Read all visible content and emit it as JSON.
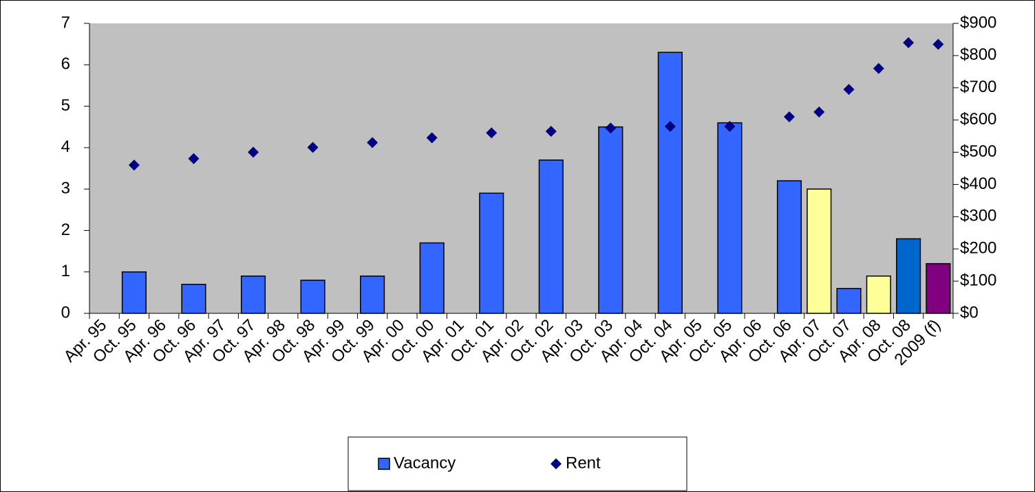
{
  "chart_data": {
    "type": "bar",
    "categories": [
      "Apr. 95",
      "Oct. 95",
      "Apr. 96",
      "Oct. 96",
      "Apr. 97",
      "Oct. 97",
      "Apr. 98",
      "Oct. 98",
      "Apr. 99",
      "Oct. 99",
      "Apr. 00",
      "Oct. 00",
      "Apr. 01",
      "Oct. 01",
      "Apr. 02",
      "Oct. 02",
      "Apr. 03",
      "Oct. 03",
      "Apr. 04",
      "Oct. 04",
      "Apr. 05",
      "Oct. 05",
      "Apr. 06",
      "Oct. 06",
      "Apr. 07",
      "Oct. 07",
      "Apr. 08",
      "Oct. 08",
      "2009 (f)"
    ],
    "series": [
      {
        "name": "Vacancy",
        "type": "bar",
        "color": "#3366ff",
        "colors": [
          null,
          "#3366ff",
          null,
          "#3366ff",
          null,
          "#3366ff",
          null,
          "#3366ff",
          null,
          "#3366ff",
          null,
          "#3366ff",
          null,
          "#3366ff",
          null,
          "#3366ff",
          null,
          "#3366ff",
          null,
          "#3366ff",
          null,
          "#3366ff",
          null,
          "#3366ff",
          "#ffff99",
          "#3366ff",
          "#ffff99",
          "#0066cc",
          "#800080"
        ],
        "values": [
          null,
          1.0,
          null,
          0.7,
          null,
          0.9,
          null,
          0.8,
          null,
          0.9,
          null,
          1.7,
          null,
          2.9,
          null,
          3.7,
          null,
          4.5,
          null,
          6.3,
          null,
          4.6,
          null,
          3.2,
          3.0,
          0.6,
          0.9,
          1.8,
          1.2
        ]
      },
      {
        "name": "Rent",
        "type": "scatter",
        "axis": "y2",
        "color": "#000080",
        "values": [
          null,
          460,
          null,
          480,
          null,
          500,
          null,
          515,
          null,
          530,
          null,
          545,
          null,
          560,
          null,
          565,
          null,
          575,
          null,
          580,
          null,
          580,
          null,
          610,
          625,
          695,
          760,
          840,
          835
        ]
      }
    ],
    "ylim": [
      0,
      7
    ],
    "yticks": [
      0,
      1,
      2,
      3,
      4,
      5,
      6,
      7
    ],
    "y2lim": [
      0,
      900
    ],
    "y2ticks": [
      {
        "value": 0,
        "label": "$0"
      },
      {
        "value": 100,
        "label": "$100"
      },
      {
        "value": 200,
        "label": "$200"
      },
      {
        "value": 300,
        "label": "$300"
      },
      {
        "value": 400,
        "label": "$400"
      },
      {
        "value": 500,
        "label": "$500"
      },
      {
        "value": 600,
        "label": "$600"
      },
      {
        "value": 700,
        "label": "$700"
      },
      {
        "value": 800,
        "label": "$800"
      },
      {
        "value": 900,
        "label": "$900"
      }
    ],
    "plot_background": "#c0c0c0",
    "legend": "bottom"
  }
}
